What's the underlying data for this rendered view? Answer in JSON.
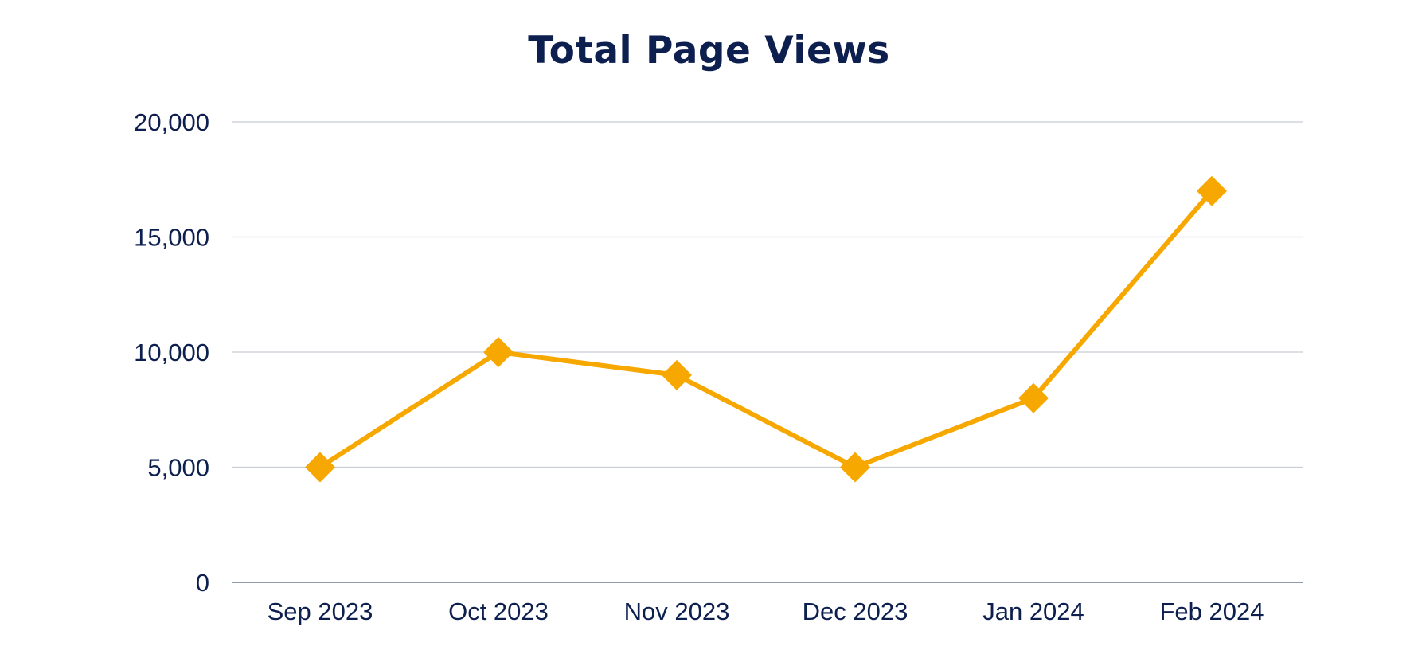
{
  "chart_data": {
    "type": "line",
    "title": "Total Page Views",
    "xlabel": "",
    "ylabel": "",
    "categories": [
      "Sep 2023",
      "Oct 2023",
      "Nov 2023",
      "Dec 2023",
      "Jan 2024",
      "Feb 2024"
    ],
    "series": [
      {
        "values": [
          5000,
          10000,
          9000,
          5000,
          8000,
          17000
        ],
        "color": "#f7a800",
        "marker": "diamond"
      }
    ],
    "ylim": [
      0,
      20000
    ],
    "yticks": [
      0,
      5000,
      10000,
      15000,
      20000
    ],
    "ytick_labels": [
      "0",
      "5,000",
      "10,000",
      "15,000",
      "20,000"
    ],
    "grid": true,
    "legend": "none",
    "colors": {
      "title": "#0d1f4f",
      "tick_text": "#0d1f4f",
      "gridline": "#c8ccd4",
      "baseline": "#6e7a94"
    }
  }
}
